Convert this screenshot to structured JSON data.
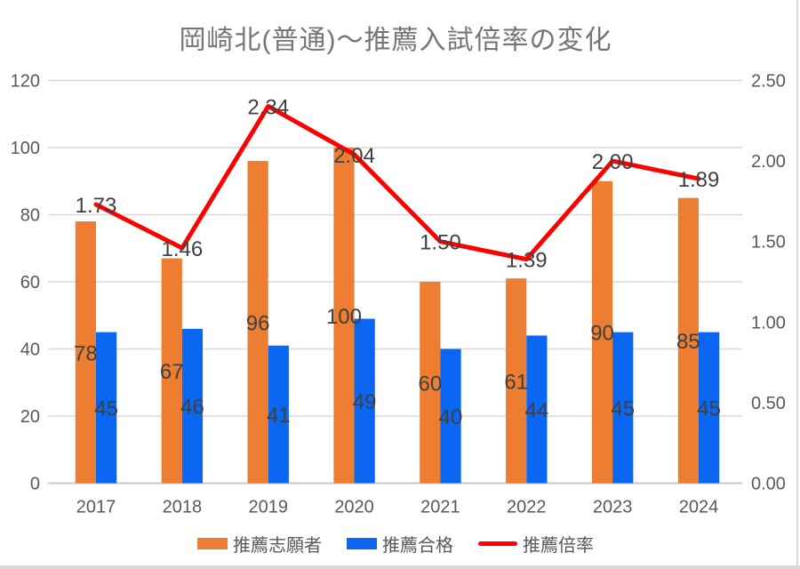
{
  "title": "岡崎北(普通)〜推薦入試倍率の変化",
  "colors": {
    "orange": "#ED7D31",
    "blue": "#0B66F2",
    "red": "#FF0000",
    "gridline": "#D9D9D9",
    "axis_line": "#C8C8C8",
    "axis_text": "#595959",
    "data_label": "#404040",
    "title_text": "#767676",
    "border": "#D9D9D9",
    "background": "#FFFFFF"
  },
  "chart_data": {
    "type": "bar",
    "subtype": "clustered-bar-with-line-combo",
    "title": "岡崎北(普通)〜推薦入試倍率の変化",
    "categories": [
      "2017",
      "2018",
      "2019",
      "2020",
      "2021",
      "2022",
      "2023",
      "2024"
    ],
    "series": [
      {
        "name": "推薦志願者",
        "chart_type": "bar",
        "axis": "left",
        "color": "#ED7D31",
        "values": [
          78,
          67,
          96,
          100,
          60,
          61,
          90,
          85
        ],
        "labels": [
          "78",
          "67",
          "96",
          "100",
          "60",
          "61",
          "90",
          "85"
        ]
      },
      {
        "name": "推薦合格",
        "chart_type": "bar",
        "axis": "left",
        "color": "#0B66F2",
        "values": [
          45,
          46,
          41,
          49,
          40,
          44,
          45,
          45
        ],
        "labels": [
          "45",
          "46",
          "41",
          "49",
          "40",
          "44",
          "45",
          "45"
        ]
      },
      {
        "name": "推薦倍率",
        "chart_type": "line",
        "axis": "right",
        "color": "#FF0000",
        "values": [
          1.73,
          1.46,
          2.34,
          2.04,
          1.5,
          1.39,
          2.0,
          1.89
        ],
        "labels": [
          "1.73",
          "1.46",
          "2.34",
          "2.04",
          "1.50",
          "1.39",
          "2.00",
          "1.89"
        ]
      }
    ],
    "left_axis": {
      "min": 0,
      "max": 120,
      "step": 20,
      "tick_labels": [
        "0",
        "20",
        "40",
        "60",
        "80",
        "100",
        "120"
      ]
    },
    "right_axis": {
      "min": 0.0,
      "max": 2.5,
      "step": 0.5,
      "tick_labels": [
        "0.00",
        "0.50",
        "1.00",
        "1.50",
        "2.00",
        "2.50"
      ]
    },
    "grid": true,
    "legend_position": "bottom"
  }
}
